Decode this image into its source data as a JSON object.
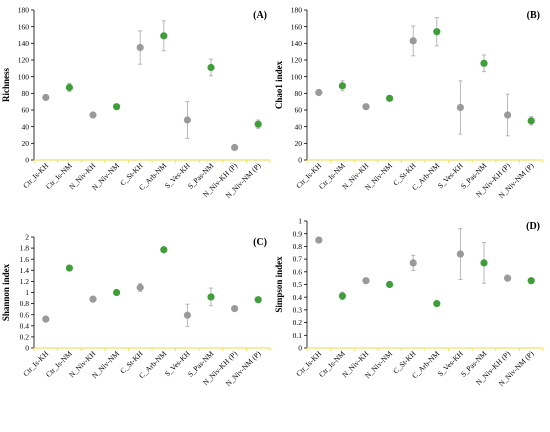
{
  "colors": {
    "grey": "#9a9a9a",
    "green": "#3f9e3a",
    "axis": "#f0e06a",
    "errorbar": "#b0b0b0"
  },
  "chart_data": [
    {
      "type": "scatter",
      "panel": "(A)",
      "ylabel": "Richness",
      "ylim": [
        0,
        180
      ],
      "yticks": [
        0,
        20,
        40,
        60,
        80,
        100,
        120,
        140,
        160,
        180
      ],
      "categories": [
        "Ctr_Is-KH",
        "Ctr_Is-NM",
        "N_Niv-KH",
        "N_Niv-NM",
        "C_St-KH",
        "C_Arb-NM",
        "S_Ves-KH",
        "S_Pas-NM",
        "N_Niv-KH (P)",
        "N_Niv-NM (P)"
      ],
      "colors": [
        "grey",
        "green",
        "grey",
        "green",
        "grey",
        "green",
        "grey",
        "green",
        "grey",
        "green"
      ],
      "values": [
        75,
        87,
        54,
        64,
        135,
        149,
        48,
        111,
        15,
        43
      ],
      "errors": [
        2,
        5,
        2,
        2,
        20,
        18,
        22,
        10,
        2,
        5
      ]
    },
    {
      "type": "scatter",
      "panel": "(B)",
      "ylabel": "Chao1 index",
      "ylim": [
        0,
        180
      ],
      "yticks": [
        0,
        20,
        40,
        60,
        80,
        100,
        120,
        140,
        160,
        180
      ],
      "categories": [
        "Ctr_Is-KH",
        "Ctr_Is-NM",
        "N_Niv-KH",
        "N_Niv-NM",
        "C_St-KH",
        "C_Arb-NM",
        "S_Ves-KH",
        "S_Pas-NM",
        "N_Niv-KH (P)",
        "N_Niv-NM (P)"
      ],
      "colors": [
        "grey",
        "green",
        "grey",
        "green",
        "grey",
        "green",
        "grey",
        "green",
        "grey",
        "green"
      ],
      "values": [
        81,
        89,
        64,
        74,
        143,
        154,
        63,
        116,
        54,
        47
      ],
      "errors": [
        2,
        6,
        2,
        2,
        18,
        17,
        32,
        10,
        25,
        5
      ]
    },
    {
      "type": "scatter",
      "panel": "(C)",
      "ylabel": "Shannon index",
      "ylim": [
        0,
        2
      ],
      "yticks": [
        0,
        0.2,
        0.4,
        0.6,
        0.8,
        1,
        1.2,
        1.4,
        1.6,
        1.8,
        2
      ],
      "categories": [
        "Ctr_Is-KH",
        "Ctr_Is-NM",
        "N_Niv-KH",
        "N_Niv-NM",
        "C_St-KH",
        "C_Arb-NM",
        "S_Ves-KH",
        "S_Pas-NM",
        "N_Niv-KH (P)",
        "N_Niv-NM (P)"
      ],
      "colors": [
        "grey",
        "green",
        "grey",
        "green",
        "grey",
        "green",
        "grey",
        "green",
        "grey",
        "green"
      ],
      "values": [
        0.52,
        1.44,
        0.88,
        1.0,
        1.09,
        1.77,
        0.59,
        0.92,
        0.71,
        0.87
      ],
      "errors": [
        0.02,
        0.02,
        0.02,
        0.02,
        0.07,
        0.02,
        0.2,
        0.16,
        0.02,
        0.02
      ]
    },
    {
      "type": "scatter",
      "panel": "(D)",
      "ylabel": "Simpson index",
      "ylim": [
        0,
        1
      ],
      "yticks": [
        0,
        0.1,
        0.2,
        0.3,
        0.4,
        0.5,
        0.6,
        0.7,
        0.8,
        0.9,
        1
      ],
      "categories": [
        "Ctr_Is-KH",
        "Ctr_Is-NM",
        "N_Niv-KH",
        "N_Niv-NM",
        "C_St-KH",
        "C_Arb-NM",
        "S_Ves-KH",
        "S_Pas-NM",
        "N_Niv-KH (P)",
        "N_Niv-NM (P)"
      ],
      "colors": [
        "grey",
        "green",
        "grey",
        "green",
        "grey",
        "green",
        "grey",
        "green",
        "grey",
        "green"
      ],
      "values": [
        0.85,
        0.41,
        0.53,
        0.5,
        0.67,
        0.35,
        0.74,
        0.67,
        0.55,
        0.53
      ],
      "errors": [
        0.01,
        0.03,
        0.01,
        0.01,
        0.06,
        0.01,
        0.2,
        0.16,
        0.01,
        0.01
      ]
    }
  ]
}
